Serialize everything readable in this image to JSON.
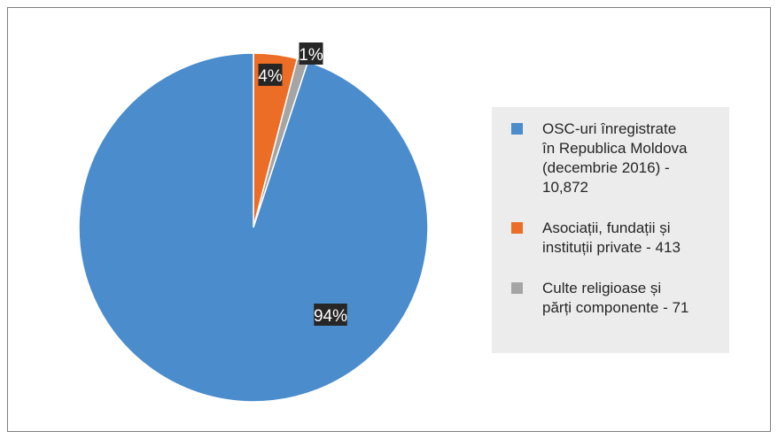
{
  "chart_data": {
    "type": "pie",
    "title": "",
    "slices": [
      {
        "label": "OSC-uri înregistrate în Republica Moldova (decembrie 2016) - 10,872",
        "value": 94,
        "data_label": "94%",
        "color": "#4a8ccc"
      },
      {
        "label": "Asociații, fundații și instituții private - 413",
        "value": 4,
        "data_label": "4%",
        "color": "#ec6d25"
      },
      {
        "label": "Culte religioase și părți componente - 71",
        "value": 1,
        "data_label": "1%",
        "color": "#a5a5a5"
      }
    ],
    "legend_position": "right",
    "legend": [
      "OSC-uri înregistrate\nîn Republica Moldova\n(decembrie 2016) -\n10,872",
      "Asociații, fundații și\ninstituții private - 413",
      "Culte religioase și\npărți componente - 71"
    ]
  }
}
